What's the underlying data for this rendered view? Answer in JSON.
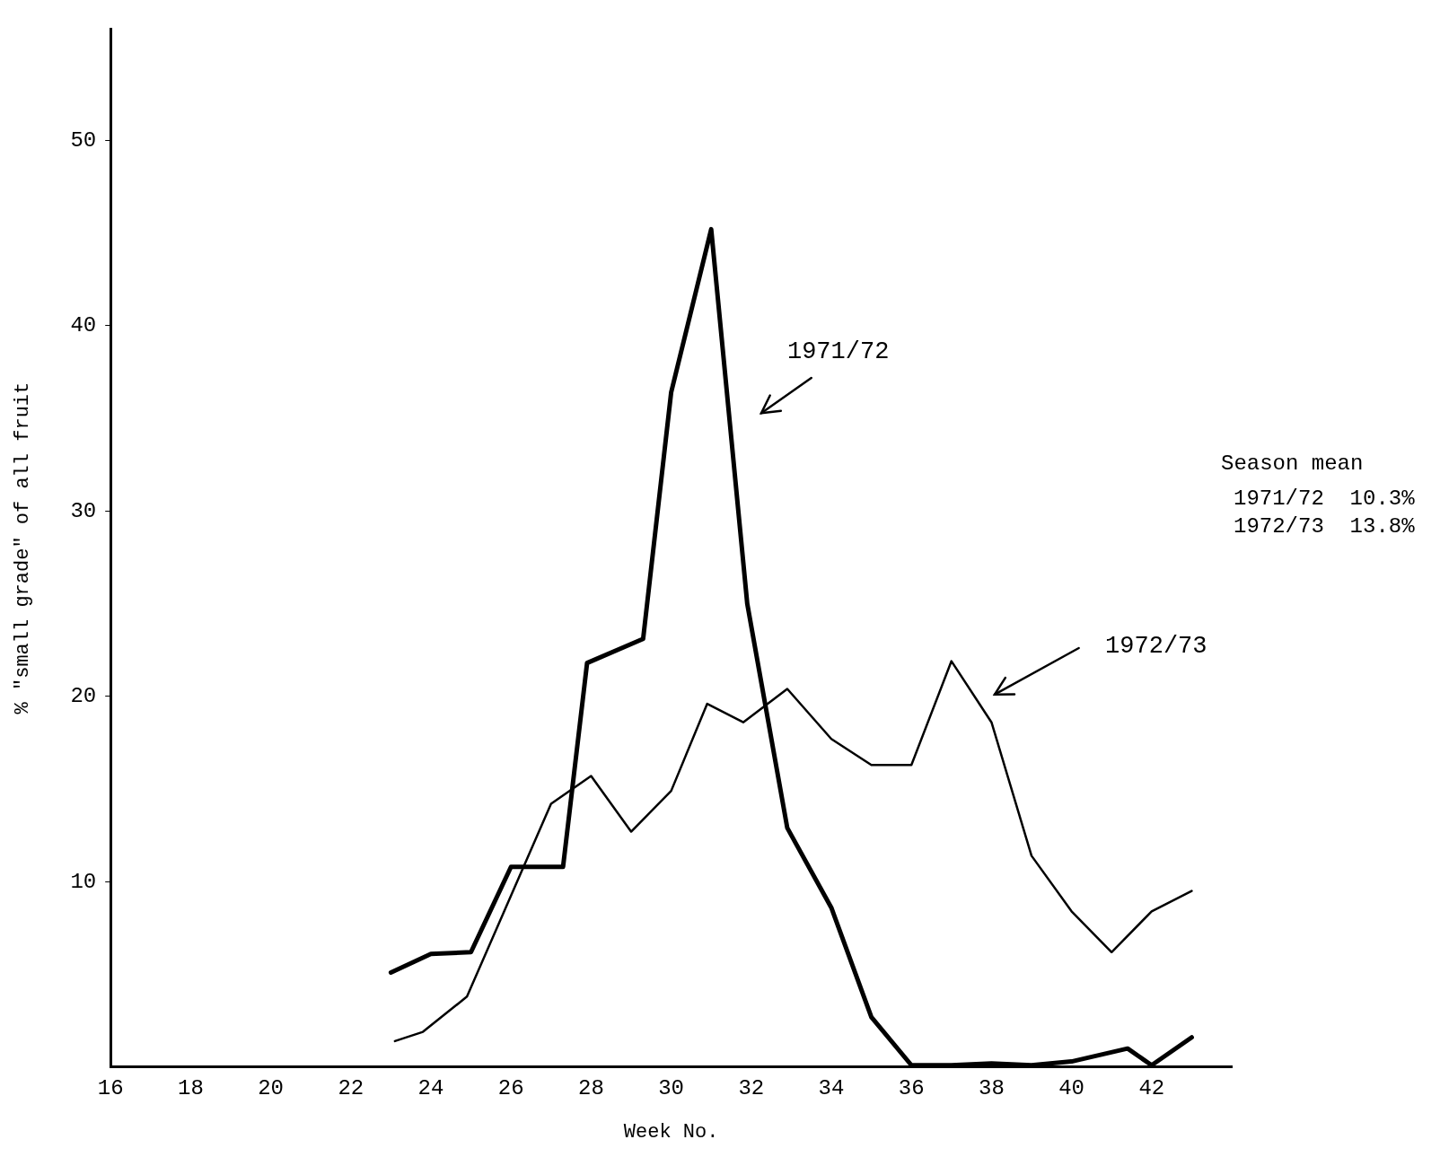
{
  "chart_data": {
    "type": "line",
    "xlabel": "Week No.",
    "ylabel": "% \"small grade\" of all fruit",
    "xlim": [
      16,
      44
    ],
    "xticks": [
      16,
      18,
      20,
      22,
      24,
      26,
      28,
      30,
      32,
      34,
      36,
      38,
      40,
      42
    ],
    "ylim": [
      0,
      56
    ],
    "yticks": [
      10,
      20,
      30,
      40,
      50
    ],
    "grid": false,
    "legend": false,
    "marker": "none",
    "line_style": "solid",
    "annotations": [
      "Season mean",
      "1971/72  10.3%",
      "1972/73  13.8%"
    ],
    "series": [
      {
        "name": "1971/72",
        "color": "#000000",
        "x": [
          23,
          24,
          25,
          26,
          27.3,
          27.9,
          29.3,
          30,
          31,
          31.9,
          32.9,
          34,
          35,
          36,
          37,
          38,
          39,
          40,
          41.4,
          42,
          43
        ],
        "values": [
          5.1,
          6.1,
          6.2,
          10.8,
          10.8,
          21.8,
          23.1,
          36.4,
          45.2,
          25.0,
          12.9,
          8.6,
          2.7,
          0.1,
          0.1,
          0.2,
          0.1,
          0.3,
          1.0,
          0.1,
          1.6
        ]
      },
      {
        "name": "1972/73",
        "color": "#000000",
        "x": [
          23.1,
          23.8,
          24.9,
          27,
          28,
          29,
          30,
          30.9,
          31.8,
          32.9,
          34,
          35,
          36,
          37,
          38,
          39,
          40,
          41,
          42,
          43
        ],
        "values": [
          1.4,
          1.9,
          3.8,
          14.2,
          15.7,
          12.7,
          14.9,
          19.6,
          18.6,
          20.4,
          17.7,
          16.3,
          16.3,
          21.9,
          18.6,
          11.4,
          8.4,
          6.2,
          8.4,
          9.5
        ]
      }
    ]
  }
}
